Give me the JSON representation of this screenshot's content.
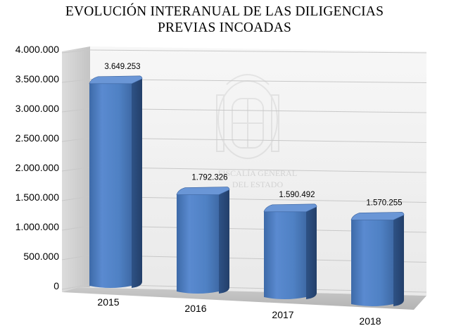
{
  "chart_data": {
    "type": "bar",
    "title_lines": [
      "EVOLUCIÓN INTERANUAL DE LAS DILIGENCIAS",
      "PREVIAS INCOADAS"
    ],
    "categories": [
      "2015",
      "2016",
      "2017",
      "2018"
    ],
    "values": [
      3649253,
      1792326,
      1590492,
      1570255
    ],
    "value_labels": [
      "3.649.253",
      "1.792.326",
      "1.590.492",
      "1.570.255"
    ],
    "y_ticks": [
      "0",
      "500.000",
      "1.000.000",
      "1.500.000",
      "2.000.000",
      "2.500.000",
      "3.000.000",
      "3.500.000",
      "4.000.000"
    ],
    "ylim": [
      0,
      4000000
    ],
    "grid": true,
    "legend": "none",
    "style": "3d-cylinder-bar",
    "bar_color": "#4F81BD",
    "watermark_text": [
      "FISCALÍA GENERAL",
      "DEL ESTADO"
    ]
  }
}
